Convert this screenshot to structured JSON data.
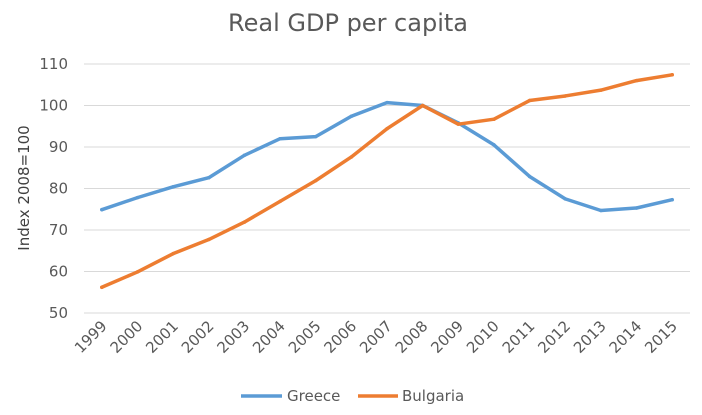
{
  "chart_data": {
    "type": "line",
    "title": "Real GDP per capita",
    "xlabel": "",
    "ylabel": "Index 2008=100",
    "categories": [
      "1999",
      "2000",
      "2001",
      "2002",
      "2003",
      "2004",
      "2005",
      "2006",
      "2007",
      "2008",
      "2009",
      "2010",
      "2011",
      "2012",
      "2013",
      "2014",
      "2015"
    ],
    "ylim": [
      50,
      110
    ],
    "yticks": [
      50,
      60,
      70,
      80,
      90,
      100,
      110
    ],
    "grid": true,
    "legend_position": "bottom",
    "series": [
      {
        "name": "Greece",
        "color": "#5b9bd5",
        "values": [
          74.9,
          77.8,
          80.4,
          82.6,
          88.0,
          92.0,
          92.5,
          97.4,
          100.7,
          100.0,
          95.8,
          90.5,
          82.9,
          77.5,
          74.7,
          75.3,
          77.3
        ]
      },
      {
        "name": "Bulgaria",
        "color": "#ed7d31",
        "values": [
          56.2,
          59.9,
          64.3,
          67.7,
          71.9,
          76.9,
          81.9,
          87.6,
          94.4,
          100.0,
          95.5,
          96.7,
          101.2,
          102.3,
          103.7,
          106.0,
          107.4
        ]
      }
    ]
  }
}
